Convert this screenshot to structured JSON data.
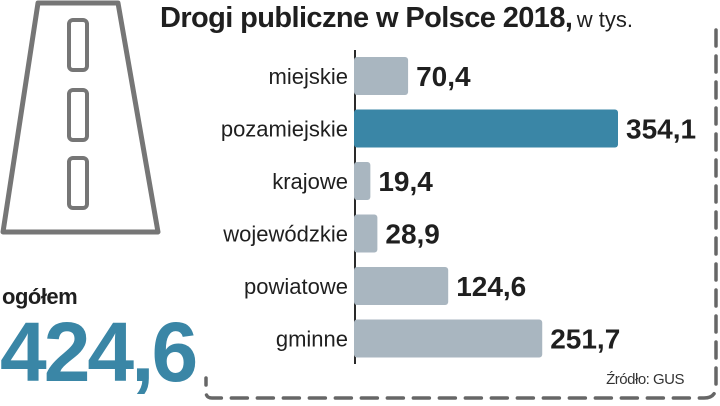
{
  "header": {
    "title": "Drogi publiczne w Polsce 2018,",
    "unit": "w tys."
  },
  "total": {
    "label": "ogółem",
    "value": "424,6"
  },
  "source": "Źródło: GUS",
  "icon": "road-icon",
  "colors": {
    "bar_default": "#a9b6c0",
    "bar_highlight": "#3a86a6",
    "axis": "#2a2a2a",
    "frame_dash": "#666666",
    "road_stroke": "#767676"
  },
  "chart_data": {
    "type": "bar",
    "orientation": "horizontal",
    "categories": [
      "miejskie",
      "pozamiejskie",
      "krajowe",
      "wojewódzkie",
      "powiatowe",
      "gminne"
    ],
    "values": [
      70.4,
      354.1,
      19.4,
      28.9,
      124.6,
      251.7
    ],
    "value_labels": [
      "70,4",
      "354,1",
      "19,4",
      "28,9",
      "124,6",
      "251,7"
    ],
    "highlight_index": 1,
    "title": "Drogi publiczne w Polsce 2018,",
    "xlim": [
      0,
      354.1
    ]
  }
}
